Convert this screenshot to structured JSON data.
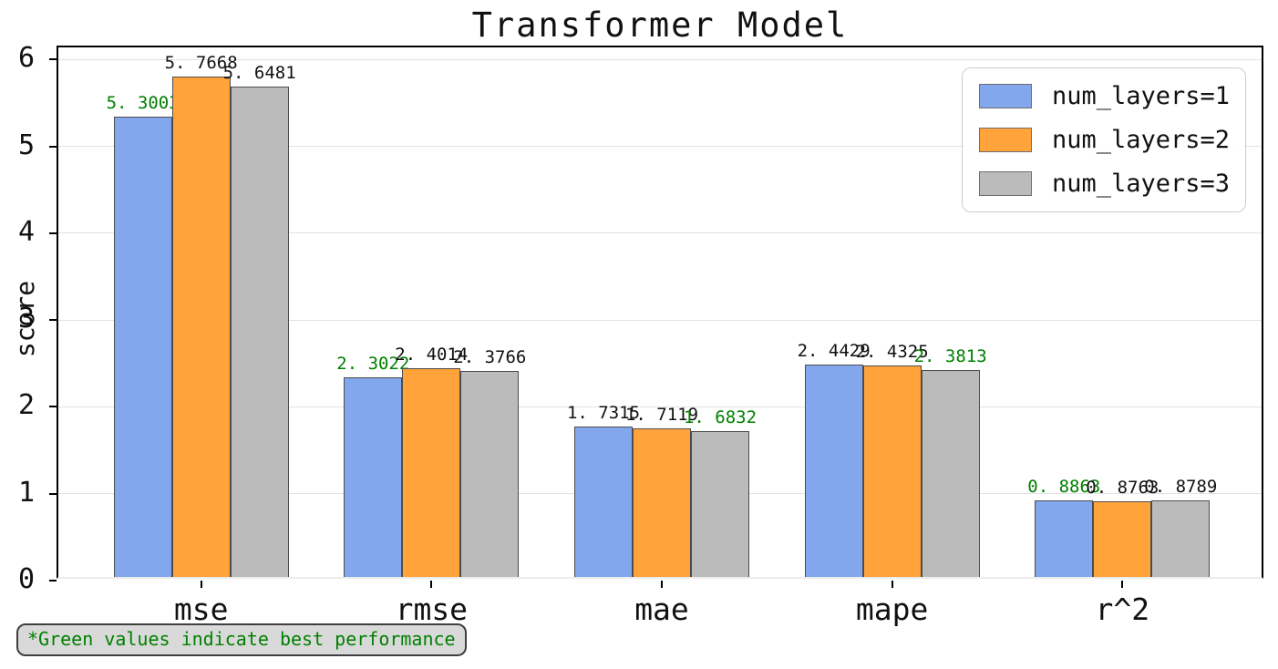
{
  "title": "Transformer Model",
  "ylabel": "score",
  "note": "*Green values indicate best performance",
  "colors": {
    "series1": "#82a7ec",
    "series2": "#ffa33a",
    "series3": "#bbbbbb",
    "bar_edge": "#4d4d4d",
    "best_value_text": "#008000",
    "value_text": "#111111",
    "grid": "#e2e2e2"
  },
  "chart_data": {
    "type": "bar",
    "title": "Transformer Model",
    "xlabel": "",
    "ylabel": "score",
    "categories": [
      "mse",
      "rmse",
      "mae",
      "mape",
      "r^2"
    ],
    "series": [
      {
        "name": "num_layers=1",
        "color": "#82a7ec",
        "values": [
          5.3003,
          2.3022,
          1.7315,
          2.4429,
          0.8863
        ]
      },
      {
        "name": "num_layers=2",
        "color": "#ffa33a",
        "values": [
          5.7668,
          2.4014,
          1.7119,
          2.4325,
          0.8763
        ]
      },
      {
        "name": "num_layers=3",
        "color": "#bbbbbb",
        "values": [
          5.6481,
          2.3766,
          1.6832,
          2.3813,
          0.8789
        ]
      }
    ],
    "best_series_per_category": [
      0,
      0,
      2,
      2,
      0
    ],
    "value_label_decimal_style": ". ",
    "yticks": [
      0,
      1,
      2,
      3,
      4,
      5,
      6
    ],
    "ylim": [
      0,
      6.14
    ],
    "grid": true,
    "legend_position": "upper right",
    "annotation": "*Green values indicate best performance"
  }
}
